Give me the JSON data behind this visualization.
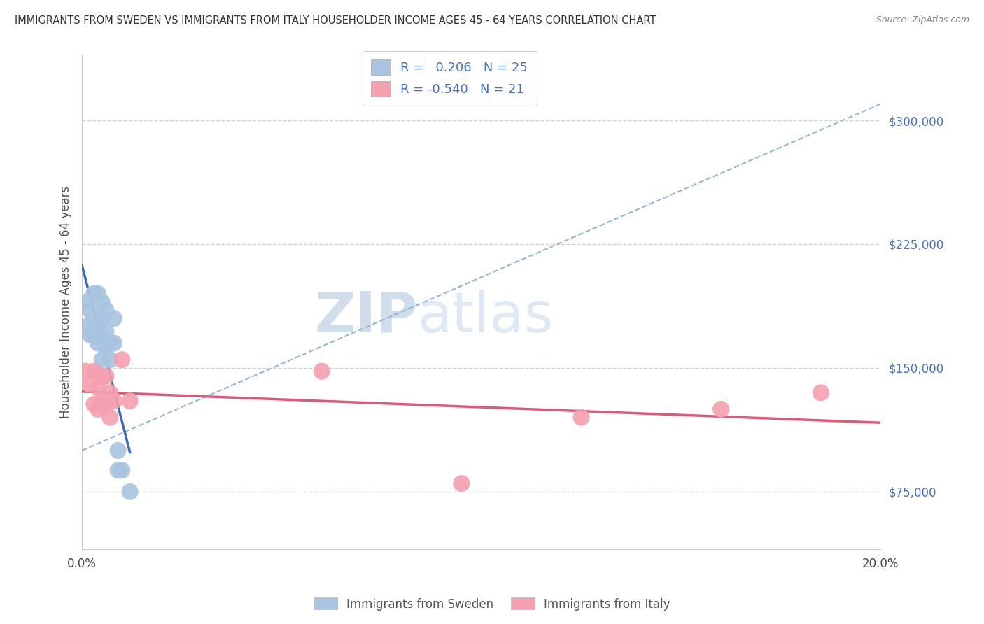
{
  "title": "IMMIGRANTS FROM SWEDEN VS IMMIGRANTS FROM ITALY HOUSEHOLDER INCOME AGES 45 - 64 YEARS CORRELATION CHART",
  "source": "Source: ZipAtlas.com",
  "ylabel": "Householder Income Ages 45 - 64 years",
  "xlim": [
    0.0,
    0.2
  ],
  "ylim": [
    40000,
    340000
  ],
  "yticks": [
    75000,
    150000,
    225000,
    300000
  ],
  "ytick_labels": [
    "$75,000",
    "$150,000",
    "$225,000",
    "$300,000"
  ],
  "xticks": [
    0.0,
    0.05,
    0.1,
    0.15,
    0.2
  ],
  "xtick_labels": [
    "0.0%",
    "",
    "",
    "",
    "20.0%"
  ],
  "sweden_color": "#a8c4e0",
  "italy_color": "#f4a0b0",
  "sweden_line_color": "#3a6bbf",
  "italy_line_color": "#e05878",
  "dashed_line_color": "#90b8d8",
  "background_color": "#ffffff",
  "grid_color": "#c8d4e0",
  "sweden_x": [
    0.001,
    0.001,
    0.002,
    0.002,
    0.003,
    0.003,
    0.003,
    0.004,
    0.004,
    0.004,
    0.005,
    0.005,
    0.005,
    0.005,
    0.006,
    0.006,
    0.006,
    0.007,
    0.007,
    0.008,
    0.008,
    0.009,
    0.009,
    0.01,
    0.012
  ],
  "sweden_y": [
    175000,
    190000,
    170000,
    185000,
    170000,
    180000,
    195000,
    165000,
    175000,
    195000,
    155000,
    168000,
    180000,
    190000,
    162000,
    172000,
    185000,
    155000,
    165000,
    165000,
    180000,
    88000,
    100000,
    88000,
    75000
  ],
  "italy_x": [
    0.001,
    0.002,
    0.003,
    0.003,
    0.004,
    0.004,
    0.005,
    0.005,
    0.005,
    0.006,
    0.006,
    0.007,
    0.007,
    0.008,
    0.01,
    0.012,
    0.06,
    0.095,
    0.125,
    0.16,
    0.185
  ],
  "italy_y": [
    148000,
    140000,
    148000,
    128000,
    138000,
    125000,
    145000,
    130000,
    128000,
    145000,
    128000,
    135000,
    120000,
    130000,
    155000,
    130000,
    148000,
    80000,
    120000,
    125000,
    135000
  ],
  "watermark_zip": "ZIP",
  "watermark_atlas": "atlas",
  "legend_sweden_label": "R =   0.206   N = 25",
  "legend_italy_label": "R = -0.540   N = 21",
  "bottom_legend_sweden": "Immigrants from Sweden",
  "bottom_legend_italy": "Immigrants from Italy"
}
